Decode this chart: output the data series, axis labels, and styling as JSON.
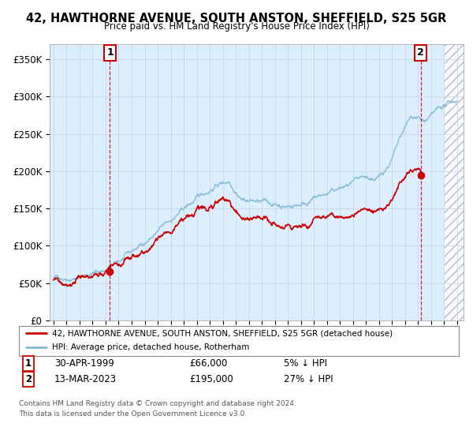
{
  "title": "42, HAWTHORNE AVENUE, SOUTH ANSTON, SHEFFIELD, S25 5GR",
  "subtitle": "Price paid vs. HM Land Registry's House Price Index (HPI)",
  "ylim": [
    0,
    370000
  ],
  "yticks": [
    0,
    50000,
    100000,
    150000,
    200000,
    250000,
    300000,
    350000
  ],
  "ytick_labels": [
    "£0",
    "£50K",
    "£100K",
    "£150K",
    "£200K",
    "£250K",
    "£300K",
    "£350K"
  ],
  "hpi_color": "#7db8d8",
  "price_color": "#cc0000",
  "dashed_color": "#cc0000",
  "plot_bg_color": "#ddeeff",
  "marker1_year": 1999.33,
  "marker1_price": 66000,
  "marker2_year": 2023.2,
  "marker2_price": 195000,
  "legend_line1": "42, HAWTHORNE AVENUE, SOUTH ANSTON, SHEFFIELD, S25 5GR (detached house)",
  "legend_line2": "HPI: Average price, detached house, Rotherham",
  "marker1_date": "30-APR-1999",
  "marker1_pct": "5% ↓ HPI",
  "marker2_date": "13-MAR-2023",
  "marker2_pct": "27% ↓ HPI",
  "footer1": "Contains HM Land Registry data © Crown copyright and database right 2024.",
  "footer2": "This data is licensed under the Open Government Licence v3.0.",
  "bg_color": "#ffffff",
  "grid_color": "#c8d8e8"
}
